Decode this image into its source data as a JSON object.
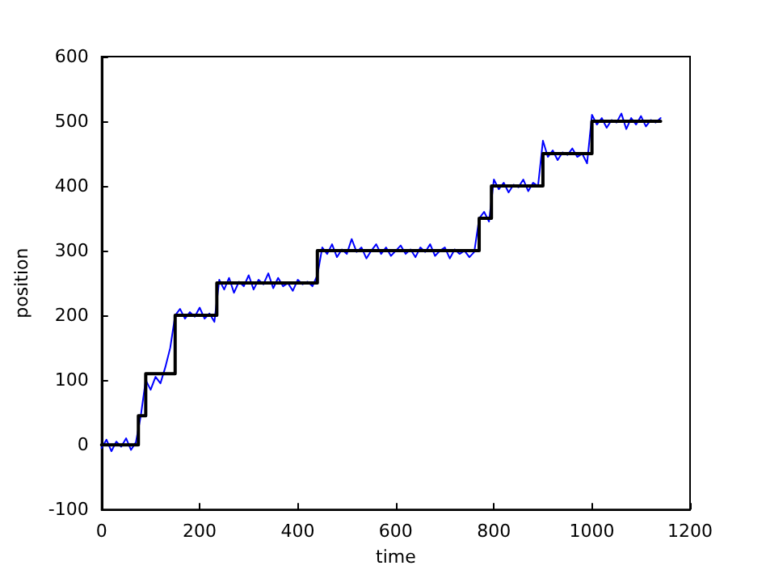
{
  "chart_data": {
    "type": "line",
    "xlabel": "time",
    "ylabel": "position",
    "xlim": [
      0,
      1200
    ],
    "xticks": [
      0,
      200,
      400,
      600,
      800,
      1000,
      1200
    ],
    "ylim": [
      -100,
      600
    ],
    "yticks": [
      -100,
      0,
      100,
      200,
      300,
      400,
      500,
      600
    ],
    "grid": false,
    "marker": "none",
    "line_style": "solid",
    "series": [
      {
        "color": "#0000ff",
        "x": [
          0,
          10,
          20,
          30,
          40,
          50,
          60,
          70,
          80,
          90,
          100,
          110,
          120,
          130,
          140,
          150,
          160,
          170,
          180,
          190,
          200,
          210,
          220,
          230,
          240,
          250,
          260,
          270,
          280,
          290,
          300,
          310,
          320,
          330,
          340,
          350,
          360,
          370,
          380,
          390,
          400,
          410,
          420,
          430,
          440,
          450,
          460,
          470,
          480,
          490,
          500,
          510,
          520,
          530,
          540,
          550,
          560,
          570,
          580,
          590,
          600,
          610,
          620,
          630,
          640,
          650,
          660,
          670,
          680,
          690,
          700,
          710,
          720,
          730,
          740,
          750,
          760,
          770,
          780,
          790,
          800,
          810,
          820,
          830,
          840,
          850,
          860,
          870,
          880,
          890,
          900,
          910,
          920,
          930,
          940,
          950,
          960,
          970,
          980,
          990,
          1000,
          1010,
          1020,
          1030,
          1040,
          1050,
          1060,
          1070,
          1080,
          1090,
          1100,
          1110,
          1120,
          1130,
          1140
        ],
        "values": [
          -5,
          8,
          -10,
          5,
          -3,
          10,
          -8,
          4,
          45,
          100,
          85,
          105,
          95,
          120,
          150,
          200,
          210,
          195,
          205,
          198,
          212,
          195,
          203,
          190,
          255,
          240,
          258,
          235,
          252,
          245,
          262,
          240,
          255,
          248,
          265,
          242,
          258,
          245,
          250,
          238,
          255,
          248,
          252,
          245,
          262,
          305,
          295,
          310,
          290,
          302,
          295,
          318,
          298,
          305,
          288,
          300,
          310,
          295,
          305,
          292,
          300,
          308,
          295,
          302,
          290,
          305,
          298,
          310,
          292,
          300,
          305,
          288,
          302,
          295,
          300,
          290,
          298,
          350,
          360,
          345,
          410,
          395,
          405,
          390,
          402,
          398,
          410,
          392,
          405,
          400,
          470,
          445,
          455,
          440,
          452,
          448,
          458,
          445,
          450,
          435,
          510,
          495,
          505,
          490,
          502,
          498,
          512,
          488,
          505,
          495,
          508,
          492,
          502,
          498,
          505
        ]
      },
      {
        "type": "step",
        "color": "#000000",
        "x": [
          0,
          75,
          90,
          150,
          235,
          440,
          770,
          795,
          900,
          1000,
          1140
        ],
        "values": [
          0,
          45,
          110,
          200,
          250,
          300,
          350,
          400,
          450,
          500,
          500
        ]
      }
    ]
  }
}
